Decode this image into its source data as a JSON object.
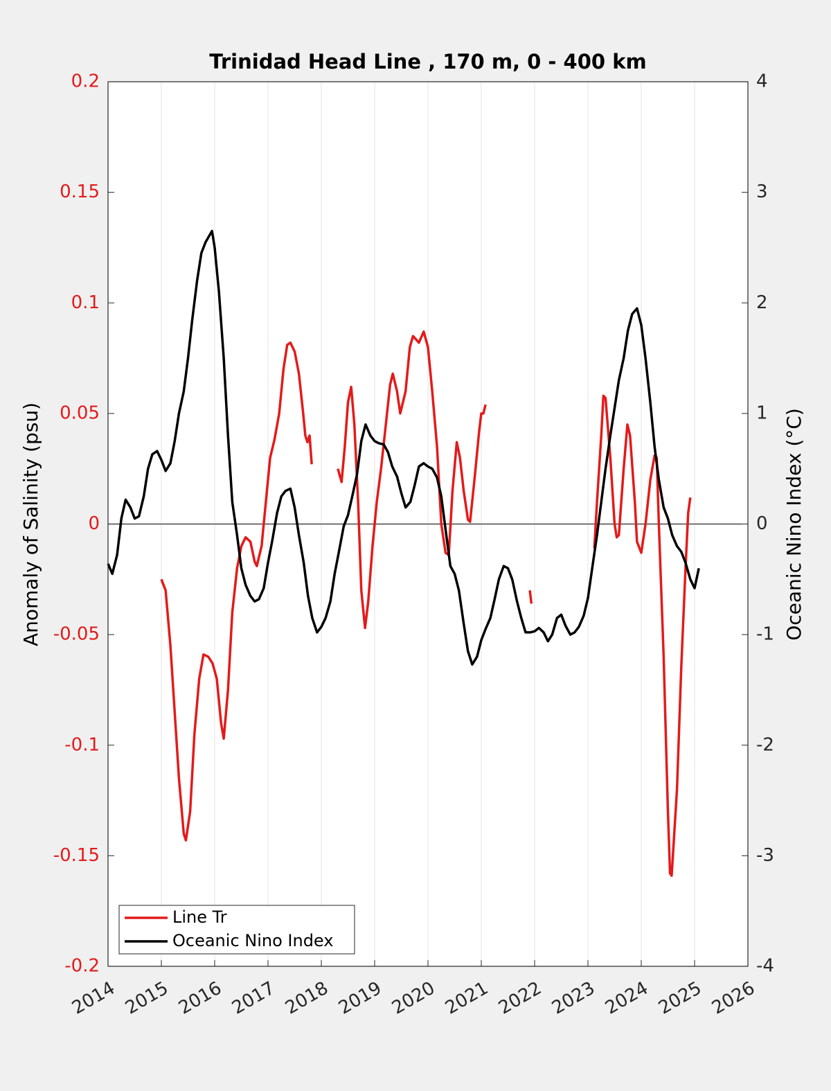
{
  "chart_data": {
    "type": "line",
    "title": "Trinidad Head Line , 170 m, 0 - 400 km",
    "y_label": "Anomaly of Salinity (psu)",
    "y2_label": "Oceanic Nino Index (°C)",
    "xlim": [
      2014,
      2026
    ],
    "xticks": [
      2014,
      2015,
      2016,
      2017,
      2018,
      2019,
      2020,
      2021,
      2022,
      2023,
      2024,
      2025,
      2026
    ],
    "ylim": [
      -0.2,
      0.2
    ],
    "yticks": [
      -0.2,
      -0.15,
      -0.1,
      -0.05,
      0,
      0.05,
      0.1,
      0.15,
      0.2
    ],
    "y2lim": [
      -4,
      4
    ],
    "y2ticks": [
      -4,
      -3,
      -2,
      -1,
      0,
      1,
      2,
      3,
      4
    ],
    "grid": "x",
    "legend": "lower left",
    "series": [
      {
        "name": "Line Tr",
        "color": "#e41a1a",
        "axis": "y",
        "x": [
          2015.0,
          2015.08,
          2015.17,
          2015.25,
          2015.33,
          2015.42,
          2015.46,
          2015.54,
          2015.62,
          2015.71,
          2015.79,
          2015.88,
          2015.96,
          2016.04,
          2016.12,
          2016.17,
          2016.25,
          2016.33,
          2016.42,
          2016.5,
          2016.58,
          2016.67,
          2016.75,
          2016.79,
          2016.88,
          2016.96,
          2017.04,
          2017.12,
          2017.21,
          2017.29,
          2017.36,
          2017.42,
          2017.5,
          2017.58,
          2017.66,
          2017.7,
          2017.74,
          2017.78,
          2017.82,
          2018.06,
          2018.31,
          2018.38,
          2018.44,
          2018.5,
          2018.56,
          2018.62,
          2018.69,
          2018.75,
          2018.82,
          2018.88,
          2018.96,
          2019.04,
          2019.12,
          2019.21,
          2019.29,
          2019.34,
          2019.42,
          2019.48,
          2019.58,
          2019.66,
          2019.72,
          2019.83,
          2019.92,
          2020.0,
          2020.08,
          2020.17,
          2020.25,
          2020.33,
          2020.39,
          2020.46,
          2020.54,
          2020.6,
          2020.67,
          2020.75,
          2020.79,
          2020.88,
          2020.96,
          2021.0,
          2021.04,
          2021.08,
          2021.5,
          2021.91,
          2021.94,
          2022.5,
          2023.12,
          2023.17,
          2023.25,
          2023.29,
          2023.33,
          2023.42,
          2023.5,
          2023.54,
          2023.58,
          2023.67,
          2023.74,
          2023.79,
          2023.88,
          2023.92,
          2024.0,
          2024.08,
          2024.17,
          2024.25,
          2024.29,
          2024.33,
          2024.42,
          2024.5,
          2024.54,
          2024.57,
          2024.67,
          2024.75,
          2024.83,
          2024.88,
          2024.92
        ],
        "values": [
          -0.025,
          -0.03,
          -0.055,
          -0.085,
          -0.115,
          -0.14,
          -0.143,
          -0.13,
          -0.095,
          -0.07,
          -0.059,
          -0.06,
          -0.063,
          -0.07,
          -0.09,
          -0.097,
          -0.075,
          -0.04,
          -0.02,
          -0.01,
          -0.006,
          -0.008,
          -0.017,
          -0.019,
          -0.01,
          0.01,
          0.03,
          0.038,
          0.05,
          0.07,
          0.081,
          0.082,
          0.078,
          0.068,
          0.05,
          0.04,
          0.037,
          0.04,
          0.027,
          null,
          0.025,
          0.019,
          0.035,
          0.055,
          0.062,
          0.045,
          0.01,
          -0.03,
          -0.047,
          -0.035,
          -0.01,
          0.01,
          0.025,
          0.045,
          0.063,
          0.068,
          0.06,
          0.05,
          0.06,
          0.08,
          0.085,
          0.082,
          0.087,
          0.08,
          0.06,
          0.035,
          0.0,
          -0.013,
          -0.014,
          0.015,
          0.037,
          0.03,
          0.015,
          0.002,
          0.001,
          0.022,
          0.042,
          0.05,
          0.05,
          0.054,
          null,
          -0.03,
          -0.036,
          null,
          -0.011,
          0.01,
          0.04,
          0.058,
          0.057,
          0.03,
          0.0,
          -0.006,
          -0.005,
          0.025,
          0.045,
          0.04,
          0.01,
          -0.008,
          -0.013,
          0.0,
          0.02,
          0.031,
          0.03,
          0.0,
          -0.06,
          -0.13,
          -0.158,
          -0.159,
          -0.12,
          -0.065,
          -0.02,
          0.005,
          0.012
        ]
      },
      {
        "name": "Oceanic Nino Index",
        "color": "#000000",
        "axis": "y2",
        "x": [
          2014.0,
          2014.08,
          2014.17,
          2014.25,
          2014.33,
          2014.42,
          2014.5,
          2014.58,
          2014.67,
          2014.75,
          2014.83,
          2014.92,
          2015.0,
          2015.08,
          2015.17,
          2015.25,
          2015.33,
          2015.42,
          2015.5,
          2015.58,
          2015.67,
          2015.75,
          2015.83,
          2015.95,
          2016.0,
          2016.08,
          2016.17,
          2016.25,
          2016.33,
          2016.42,
          2016.5,
          2016.58,
          2016.67,
          2016.75,
          2016.83,
          2016.92,
          2017.0,
          2017.08,
          2017.17,
          2017.25,
          2017.33,
          2017.42,
          2017.5,
          2017.58,
          2017.67,
          2017.75,
          2017.83,
          2017.92,
          2018.0,
          2018.08,
          2018.17,
          2018.25,
          2018.33,
          2018.42,
          2018.5,
          2018.58,
          2018.67,
          2018.75,
          2018.83,
          2018.92,
          2019.0,
          2019.08,
          2019.17,
          2019.25,
          2019.33,
          2019.42,
          2019.5,
          2019.58,
          2019.67,
          2019.75,
          2019.83,
          2019.92,
          2020.0,
          2020.08,
          2020.17,
          2020.25,
          2020.33,
          2020.42,
          2020.5,
          2020.58,
          2020.67,
          2020.75,
          2020.83,
          2020.92,
          2021.0,
          2021.08,
          2021.17,
          2021.25,
          2021.33,
          2021.42,
          2021.5,
          2021.58,
          2021.67,
          2021.75,
          2021.83,
          2021.92,
          2022.0,
          2022.08,
          2022.17,
          2022.25,
          2022.33,
          2022.42,
          2022.5,
          2022.58,
          2022.67,
          2022.75,
          2022.83,
          2022.92,
          2023.0,
          2023.08,
          2023.17,
          2023.25,
          2023.33,
          2023.42,
          2023.5,
          2023.58,
          2023.67,
          2023.75,
          2023.83,
          2023.92,
          2024.0,
          2024.08,
          2024.17,
          2024.25,
          2024.33,
          2024.42,
          2024.5,
          2024.58,
          2024.67,
          2024.75,
          2024.83,
          2024.92,
          2025.0,
          2025.08
        ],
        "values": [
          -0.36,
          -0.45,
          -0.28,
          0.05,
          0.22,
          0.15,
          0.05,
          0.07,
          0.25,
          0.5,
          0.63,
          0.66,
          0.58,
          0.48,
          0.55,
          0.75,
          1.0,
          1.2,
          1.5,
          1.85,
          2.2,
          2.45,
          2.55,
          2.65,
          2.5,
          2.1,
          1.5,
          0.8,
          0.2,
          -0.1,
          -0.4,
          -0.55,
          -0.65,
          -0.7,
          -0.68,
          -0.58,
          -0.35,
          -0.15,
          0.1,
          0.25,
          0.3,
          0.32,
          0.15,
          -0.1,
          -0.35,
          -0.65,
          -0.85,
          -0.98,
          -0.93,
          -0.85,
          -0.7,
          -0.45,
          -0.25,
          -0.02,
          0.08,
          0.25,
          0.45,
          0.75,
          0.9,
          0.8,
          0.75,
          0.73,
          0.72,
          0.65,
          0.52,
          0.43,
          0.28,
          0.15,
          0.2,
          0.35,
          0.52,
          0.55,
          0.52,
          0.5,
          0.42,
          0.25,
          -0.05,
          -0.38,
          -0.45,
          -0.6,
          -0.9,
          -1.15,
          -1.27,
          -1.2,
          -1.05,
          -0.95,
          -0.85,
          -0.68,
          -0.5,
          -0.38,
          -0.4,
          -0.5,
          -0.7,
          -0.85,
          -0.98,
          -0.98,
          -0.97,
          -0.94,
          -0.98,
          -1.06,
          -1.0,
          -0.85,
          -0.82,
          -0.92,
          -1.0,
          -0.98,
          -0.93,
          -0.83,
          -0.67,
          -0.4,
          -0.1,
          0.2,
          0.5,
          0.8,
          1.05,
          1.3,
          1.5,
          1.75,
          1.9,
          1.95,
          1.8,
          1.5,
          1.1,
          0.7,
          0.4,
          0.15,
          0.05,
          -0.1,
          -0.2,
          -0.25,
          -0.35,
          -0.5,
          -0.58,
          -0.4
        ]
      }
    ]
  }
}
